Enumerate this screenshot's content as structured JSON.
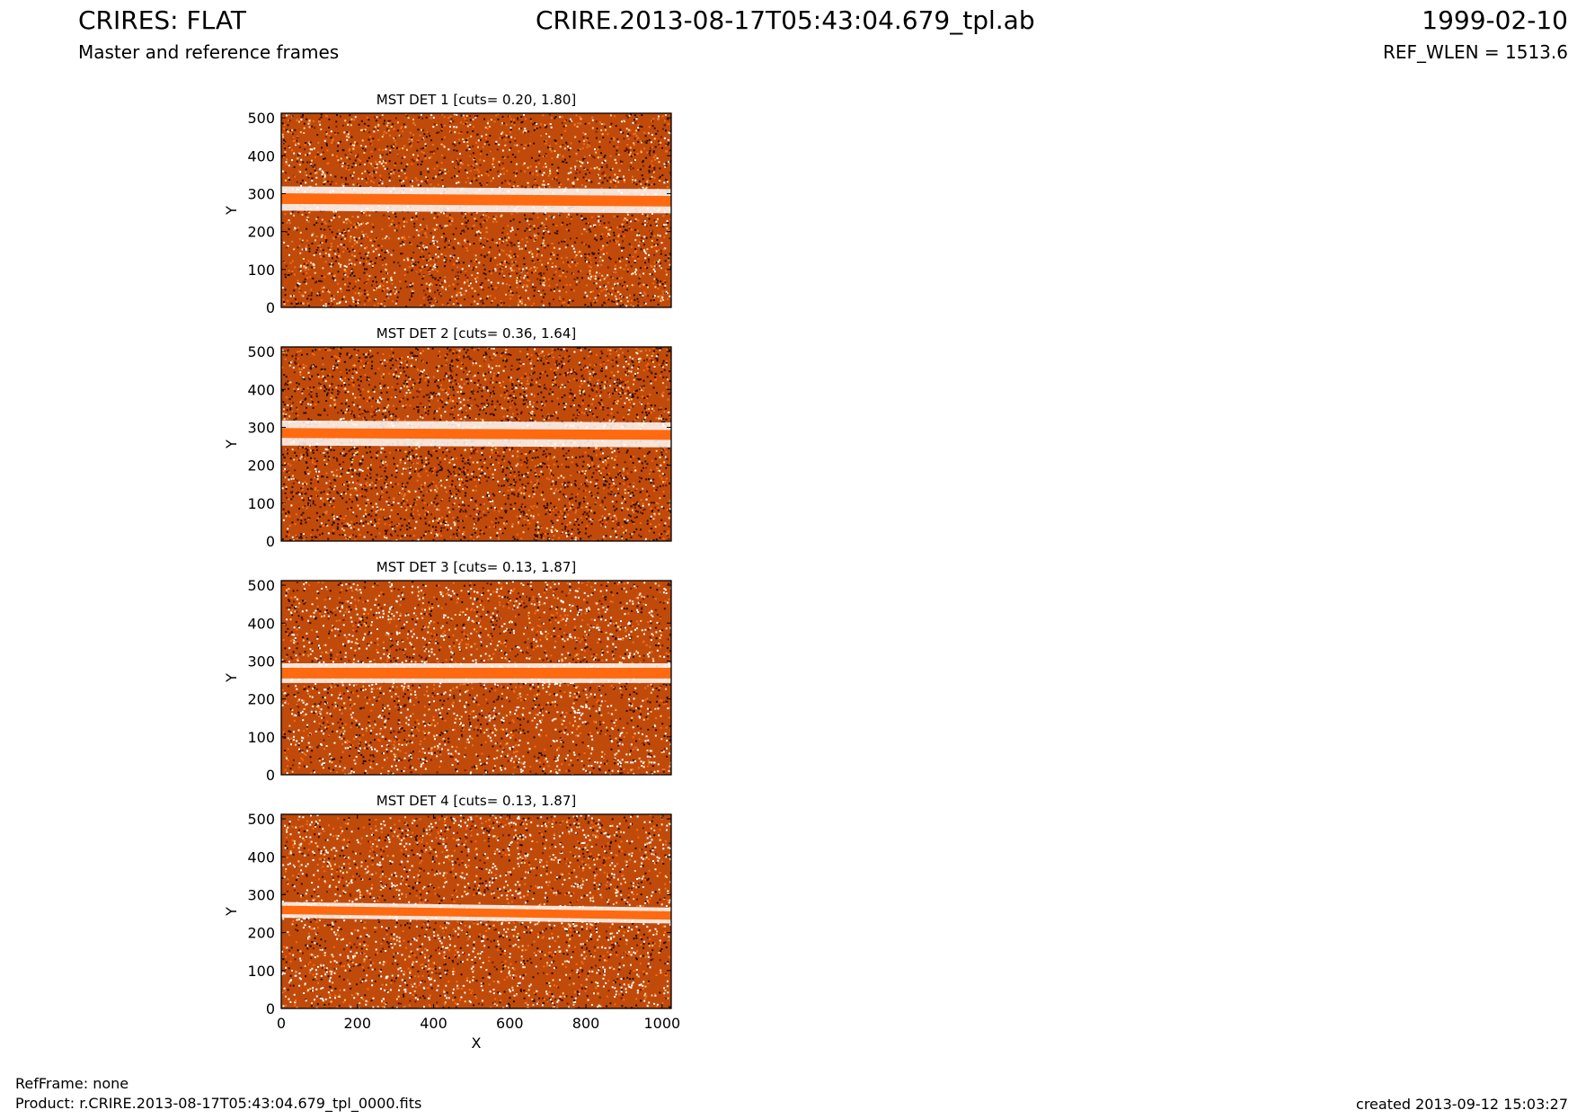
{
  "header": {
    "title_left": "CRIRES: FLAT",
    "title_center": "CRIRE.2013-08-17T05:43:04.679_tpl.ab",
    "title_right": "1999-02-10",
    "subtitle_left": "Master and reference frames",
    "subtitle_right": "REF_WLEN = 1513.6"
  },
  "footer": {
    "refframe": "RefFrame: none",
    "product": "Product: r.CRIRE.2013-08-17T05:43:04.679_tpl_0000.fits",
    "created": "created 2013-09-12 15:03:27"
  },
  "colors": {
    "dark": "#2a0a00",
    "mid": "#c04a0a",
    "bright": "#ff6a10",
    "pale": "#ffd28a",
    "white": "#ffffff"
  },
  "chart_data": [
    {
      "type": "heatmap",
      "title": "MST DET 1 [cuts= 0.20, 1.80]",
      "xlabel": "",
      "ylabel": "Y",
      "xlim": [
        0,
        1024
      ],
      "ylim": [
        0,
        512
      ],
      "xticks": [],
      "yticks": [
        0,
        100,
        200,
        300,
        400,
        500
      ],
      "band": {
        "y_center": [
          287,
          280
        ],
        "width": 28,
        "halo": 18,
        "tilt": "slight-down"
      },
      "noise_density": 0.55
    },
    {
      "type": "heatmap",
      "title": "MST DET 2 [cuts= 0.36, 1.64]",
      "xlabel": "",
      "ylabel": "Y",
      "xlim": [
        0,
        1024
      ],
      "ylim": [
        0,
        512
      ],
      "xticks": [],
      "yticks": [
        0,
        100,
        200,
        300,
        400,
        500
      ],
      "band": {
        "y_center": [
          285,
          280
        ],
        "width": 26,
        "halo": 20
      },
      "noise_density": 0.7
    },
    {
      "type": "heatmap",
      "title": "MST DET 3 [cuts= 0.13, 1.87]",
      "xlabel": "",
      "ylabel": "Y",
      "xlim": [
        0,
        1024
      ],
      "ylim": [
        0,
        512
      ],
      "xticks": [],
      "yticks": [
        0,
        100,
        200,
        300,
        400,
        500
      ],
      "band": {
        "y_center": [
          268,
          268
        ],
        "width": 28,
        "halo": 12
      },
      "noise_density": 0.4
    },
    {
      "type": "heatmap",
      "title": "MST DET 4 [cuts= 0.13, 1.87]",
      "xlabel": "X",
      "ylabel": "Y",
      "xlim": [
        0,
        1024
      ],
      "ylim": [
        0,
        512
      ],
      "xticks": [
        0,
        200,
        400,
        600,
        800,
        1000
      ],
      "yticks": [
        0,
        100,
        200,
        300,
        400,
        500
      ],
      "band": {
        "y_center": [
          260,
          245
        ],
        "width": 22,
        "halo": 10
      },
      "noise_density": 0.4
    }
  ]
}
